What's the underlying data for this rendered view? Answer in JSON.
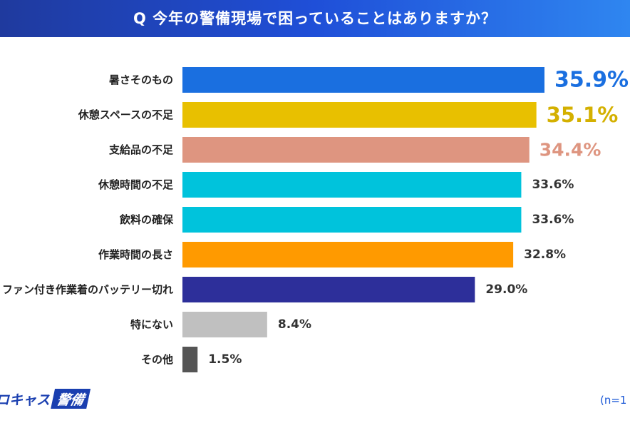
{
  "header": {
    "title": "Q 今年の警備現場で困っていることはありますか？"
  },
  "chart_data": {
    "type": "bar",
    "orientation": "horizontal",
    "categories": [
      "暑さそのもの",
      "休憩スペースの不足",
      "支給品の不足",
      "休憩時間の不足",
      "飲料の確保",
      "作業時間の長さ",
      "ファン付き作業着のバッテリー切れ",
      "特にない",
      "その他"
    ],
    "values": [
      35.9,
      35.1,
      34.4,
      33.6,
      33.6,
      32.8,
      29.0,
      8.4,
      1.5
    ],
    "value_labels": [
      "35.9%",
      "35.1%",
      "34.4%",
      "33.6%",
      "33.6%",
      "32.8%",
      "29.0%",
      "8.4%",
      "1.5%"
    ],
    "bar_colors": [
      "#1a6fe0",
      "#e8c000",
      "#de9580",
      "#00c3dc",
      "#00c3dc",
      "#ff9a00",
      "#2d2f9a",
      "#c0c0c0",
      "#555555"
    ],
    "label_colors": [
      "#1a6fe0",
      "#d4b000",
      "#de9580",
      "#333333",
      "#333333",
      "#333333",
      "#333333",
      "#333333",
      "#333333"
    ],
    "xlim": [
      0,
      40
    ],
    "grid": false,
    "legend": "none"
  },
  "footer": {
    "logo_text": "ロキャス",
    "logo_badge": "警備",
    "n_note": "(n=1"
  }
}
